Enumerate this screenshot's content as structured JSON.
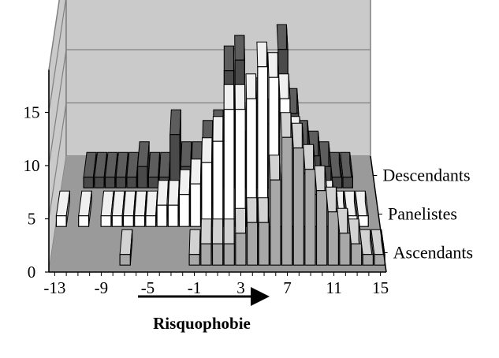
{
  "chart_data": {
    "type": "bar",
    "subtype": "3d-depth",
    "x": [
      -13,
      -12,
      -11,
      -10,
      -9,
      -8,
      -7,
      -6,
      -5,
      -4,
      -3,
      -2,
      -1,
      0,
      1,
      2,
      3,
      4,
      5,
      6,
      7,
      8,
      9,
      10,
      11,
      12,
      13,
      14,
      15
    ],
    "xticks": [
      -13,
      -9,
      -5,
      -1,
      3,
      7,
      11,
      15
    ],
    "xticks_labels": [
      "-13",
      "-9",
      "-5",
      "-1",
      "3",
      "7",
      "11",
      "15"
    ],
    "xlim": [
      -13,
      15
    ],
    "ylim": [
      0,
      19
    ],
    "yticks": [
      0,
      5,
      10,
      15
    ],
    "yticks_labels": [
      "0",
      "5",
      "10",
      "15"
    ],
    "xlabel": "Risquophobie",
    "grid": true,
    "series": [
      {
        "name": "Descendants",
        "color": "#4a4a4a",
        "values": [
          0,
          0,
          1,
          1,
          1,
          1,
          1,
          2,
          1,
          1,
          5,
          2,
          2,
          4,
          5,
          11,
          12,
          3,
          8,
          6,
          13,
          7,
          4,
          3,
          2,
          1,
          1,
          0,
          0
        ]
      },
      {
        "name": "Panelistes",
        "color": "#ffffff",
        "values": [
          1,
          0,
          1,
          0,
          1,
          1,
          1,
          1,
          1,
          2,
          2,
          3,
          4,
          6,
          8,
          11,
          11,
          12,
          15,
          14,
          12,
          8,
          5,
          3,
          2,
          1,
          1,
          1,
          0
        ]
      },
      {
        "name": "Ascendants",
        "color": "#a8a8a8",
        "values": [
          0,
          0,
          0,
          0,
          0,
          0,
          1,
          0,
          0,
          0,
          0,
          0,
          1,
          2,
          2,
          2,
          3,
          4,
          4,
          8,
          12,
          11,
          9,
          7,
          5,
          3,
          2,
          1,
          1
        ]
      }
    ]
  },
  "colors": {
    "floor": "#9a9a9a",
    "walls": "#cacaca",
    "wall_edges": "#808080",
    "bar_outline": "#000000",
    "arrow": "#000000"
  }
}
